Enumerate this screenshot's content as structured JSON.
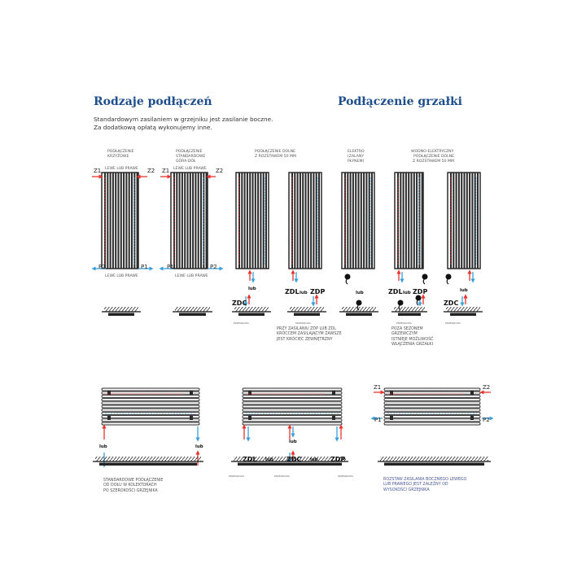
{
  "titles": {
    "connections": "Rodzaje podłączeń",
    "heater": "Podłączenie grzałki"
  },
  "intro": [
    "Standardowym zasilaniem w grzejniku jest zasilanie boczne.",
    "Za dodatkową opłatą wykonujemy inne."
  ],
  "top_labels": {
    "cross": [
      "PODŁĄCZENIE",
      "KRZYŻOWE"
    ],
    "standard": [
      "PODŁĄCZENIE",
      "STANDARDOWE",
      "GÓRA-DÓŁ"
    ],
    "bottom50": [
      "PODŁĄCZENIE DOLNE",
      "Z ROZSTAWEM 50 MM"
    ],
    "electric": [
      "ELEKTRO",
      "(ZALANY",
      "PŁYNEM)"
    ],
    "water_electric": [
      "WODNO-ELEKTRYCZNY",
      "PODŁĄCZENIE DOLNE",
      "Z ROZSTAWEM 50 MM"
    ]
  },
  "side_label": "LEWE LUB PRAWE",
  "ports": {
    "z1": "Z1",
    "z2": "Z2",
    "p1": "P1",
    "p2": "P2"
  },
  "codes": {
    "zdc": "ZDC",
    "zdl": "ZDL",
    "zdp": "ZDP",
    "lub": "lub"
  },
  "wall_label": "PRZEGRODA",
  "notes": {
    "zdp_zdl": [
      "PRZY ZASILANIU ZDP LUB ZDL",
      "KRÓCCEM ZASILAJĄCYM ZAWSZE",
      "JEST KRÓCIEC ZEWNĘTRZNY"
    ],
    "season": [
      "POZA SEZONEM",
      "GRZEWCZYM",
      "ISTNIEJE MOŻLIWOŚĆ",
      "WŁĄCZENIA GRZAŁKI"
    ],
    "collectors": [
      "STANDARDOWE PODŁĄCZENIE",
      "OD DOŁU W KOLEKTORACH",
      "PO SZEROKOŚCI GRZEJNIKA"
    ],
    "side_spacing": [
      "ROZSTAW ZASILANIA BOCZNEGO LEWEGO",
      "LUB PRAWEGO JEST ZALEŻNY OD",
      "WYSOKOŚCI GRZEJNIKA"
    ]
  },
  "colors": {
    "title": "#1f4e8c",
    "supply": "#e8322b",
    "return": "#3aa0dc",
    "radiator": "#2a2a2a"
  }
}
